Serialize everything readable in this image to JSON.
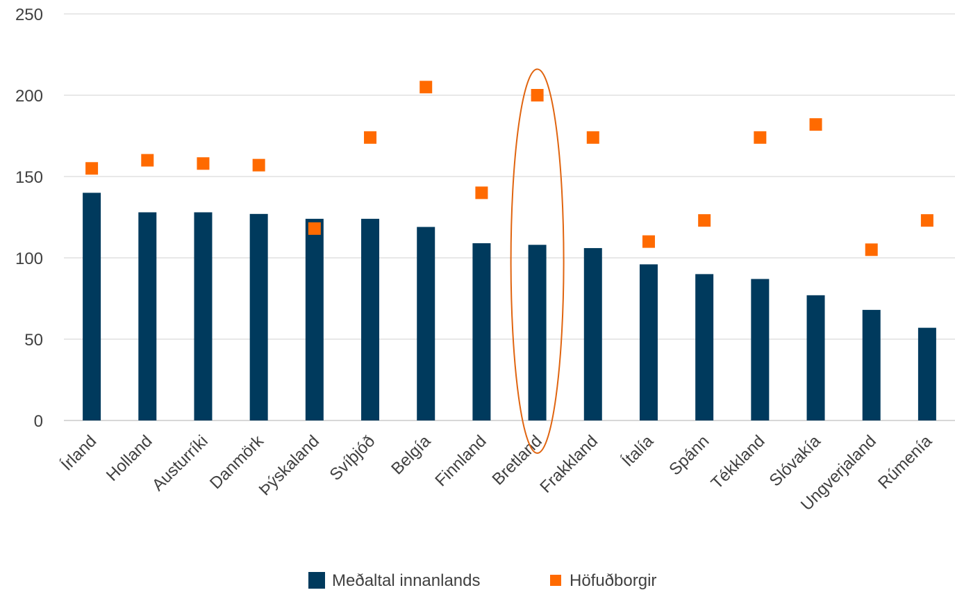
{
  "chart_data": {
    "type": "bar",
    "categories": [
      "Írland",
      "Holland",
      "Austurríki",
      "Danmörk",
      "Þýskaland",
      "Svíþjóð",
      "Belgía",
      "Finnland",
      "Bretland",
      "Frakkland",
      "Ítalía",
      "Spánn",
      "Tékkland",
      "Slóvakía",
      "Ungverjaland",
      "Rúmenía"
    ],
    "series": [
      {
        "name": "Meðaltal innanlands",
        "kind": "bar",
        "color": "#003A5D",
        "values": [
          140,
          128,
          128,
          127,
          124,
          124,
          119,
          109,
          108,
          106,
          96,
          90,
          87,
          77,
          68,
          57
        ]
      },
      {
        "name": "Höfuðborgir",
        "kind": "marker",
        "color": "#FF6A00",
        "values": [
          155,
          160,
          158,
          157,
          118,
          174,
          205,
          140,
          200,
          174,
          110,
          123,
          174,
          182,
          105,
          123
        ]
      }
    ],
    "ylim": [
      0,
      250
    ],
    "yticks": [
      0,
      50,
      100,
      150,
      200,
      250
    ],
    "xlabel": "",
    "ylabel": "",
    "grid": true,
    "legend": "bottom",
    "highlight": {
      "category": "Bretland",
      "shape": "ellipse",
      "color": "#E0640F"
    }
  }
}
